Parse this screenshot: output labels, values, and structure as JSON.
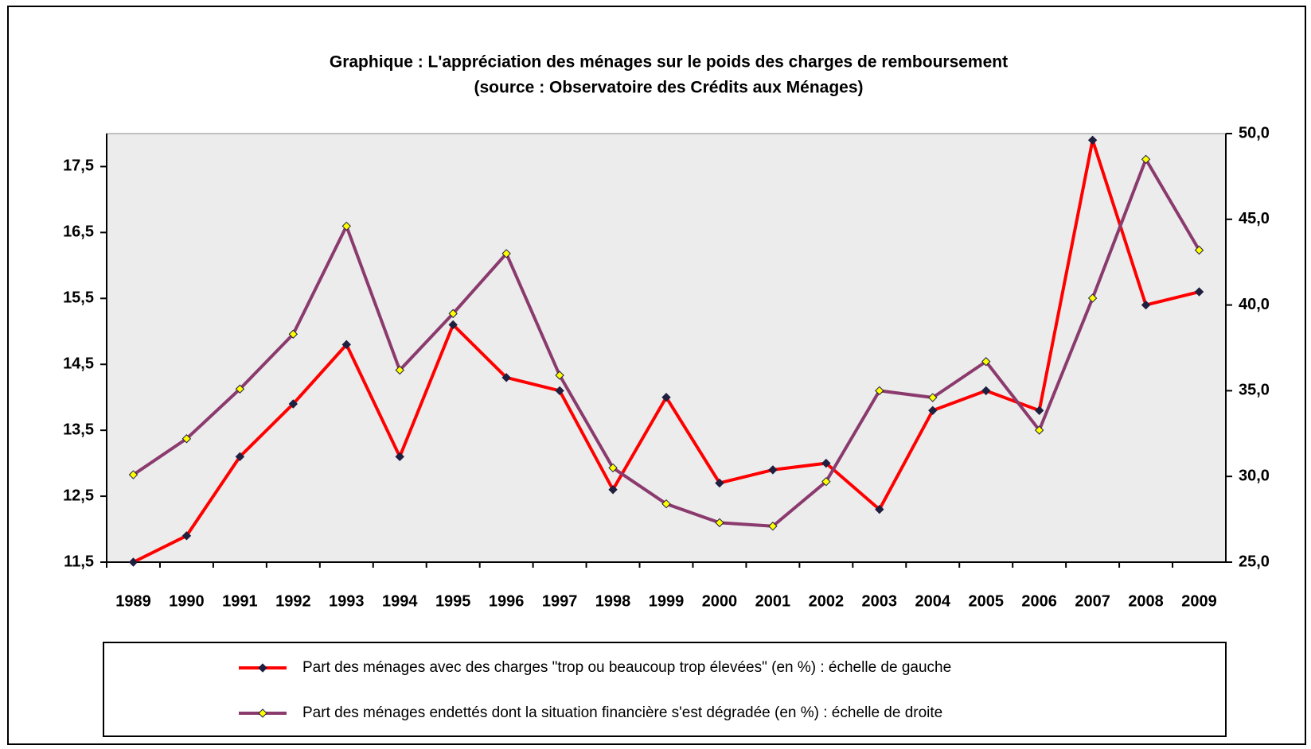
{
  "chart_data": {
    "type": "line",
    "title": "Graphique : L'appréciation des ménages sur le poids des charges de remboursement",
    "subtitle": "(source : Observatoire des Crédits aux Ménages)",
    "categories": [
      "1989",
      "1990",
      "1991",
      "1992",
      "1993",
      "1994",
      "1995",
      "1996",
      "1997",
      "1998",
      "1999",
      "2000",
      "2001",
      "2002",
      "2003",
      "2004",
      "2005",
      "2006",
      "2007",
      "2008",
      "2009"
    ],
    "series": [
      {
        "name": "Part des ménages avec des charges \"trop ou beaucoup trop élevées\" (en %) : échelle de gauche",
        "color": "#ff0000",
        "marker_color": "#1f1f3f",
        "axis": "y",
        "values": [
          11.5,
          11.9,
          13.1,
          13.9,
          14.8,
          13.1,
          15.1,
          14.3,
          14.1,
          12.6,
          14.0,
          12.7,
          12.9,
          13.0,
          12.3,
          13.8,
          14.1,
          13.8,
          17.9,
          15.4,
          15.6
        ]
      },
      {
        "name": "Part des ménages endettés dont la situation financière s'est dégradée (en %) : échelle de droite",
        "color": "#8b3a6e",
        "marker_color": "#ffff00",
        "axis": "y2",
        "values": [
          30.1,
          32.2,
          35.1,
          38.3,
          44.6,
          36.2,
          39.5,
          43.0,
          35.9,
          30.5,
          28.4,
          27.3,
          27.1,
          29.7,
          35.0,
          34.6,
          36.7,
          32.7,
          40.4,
          48.5,
          43.2
        ]
      }
    ],
    "ylim": [
      11.5,
      18.0
    ],
    "yticks": [
      {
        "value": 11.5,
        "label": "11,5"
      },
      {
        "value": 12.5,
        "label": "12,5"
      },
      {
        "value": 13.5,
        "label": "13,5"
      },
      {
        "value": 14.5,
        "label": "14,5"
      },
      {
        "value": 15.5,
        "label": "15,5"
      },
      {
        "value": 16.5,
        "label": "16,5"
      },
      {
        "value": 17.5,
        "label": "17,5"
      }
    ],
    "y2lim": [
      25,
      50
    ],
    "y2ticks": [
      {
        "value": 25,
        "label": "25,0"
      },
      {
        "value": 30,
        "label": "30,0"
      },
      {
        "value": 35,
        "label": "35,0"
      },
      {
        "value": 40,
        "label": "40,0"
      },
      {
        "value": 45,
        "label": "45,0"
      },
      {
        "value": 50,
        "label": "50,0"
      }
    ],
    "plot_background": "#ececec"
  }
}
